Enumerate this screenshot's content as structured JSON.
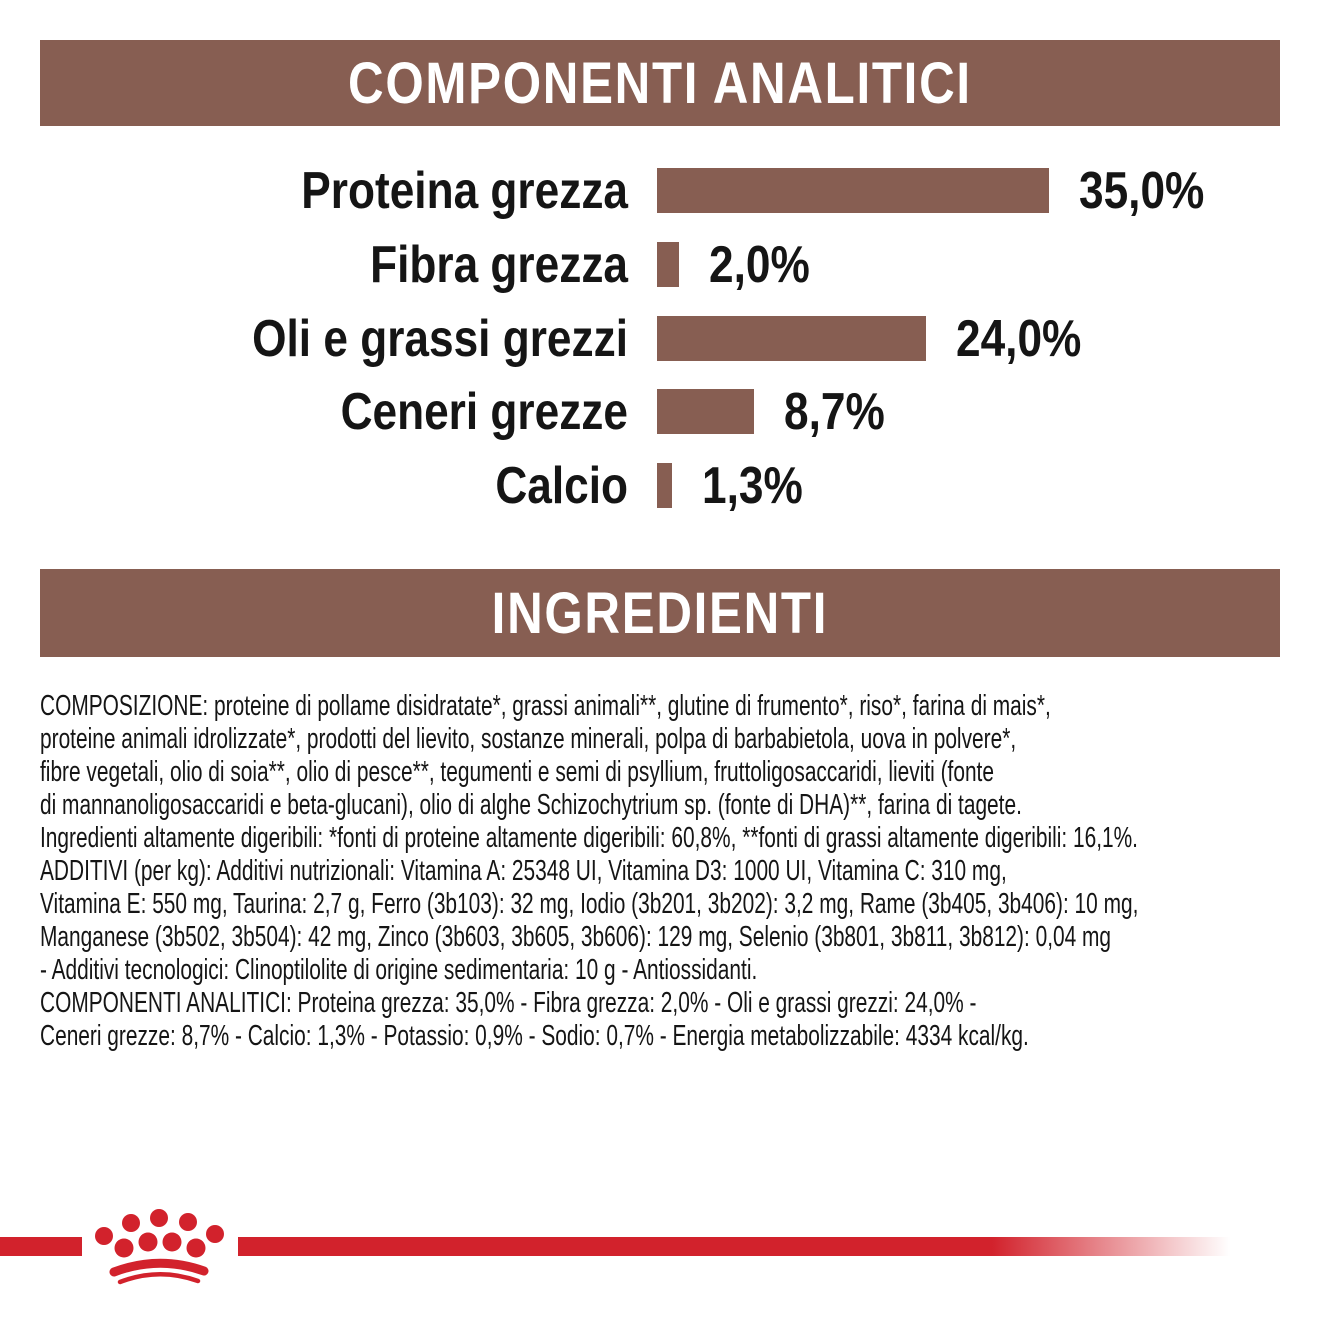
{
  "colors": {
    "brown": "#875E52",
    "red": "#D2222C",
    "text": "#151515",
    "band_text": "#FFFFFF",
    "background": "#FFFFFF"
  },
  "sections": {
    "analytical": {
      "title": "COMPONENTI ANALITICI"
    },
    "ingredients": {
      "title": "INGREDIENTI"
    }
  },
  "chart_data": {
    "type": "bar",
    "orientation": "horizontal",
    "title": "COMPONENTI ANALITICI",
    "categories": [
      "Proteina grezza",
      "Fibra grezza",
      "Oli e grassi grezzi",
      "Ceneri grezze",
      "Calcio"
    ],
    "values": [
      35.0,
      2.0,
      24.0,
      8.7,
      1.3
    ],
    "value_labels": [
      "35,0%",
      "2,0%",
      "24,0%",
      "8,7%",
      "1,3%"
    ],
    "unit": "%",
    "xlim": [
      0,
      35
    ],
    "grid": false,
    "bar_color": "#875E52",
    "value_label_position": "right-of-bar"
  },
  "ingredients_text": {
    "lines": [
      "COMPOSIZIONE: proteine di pollame disidratate*, grassi animali**, glutine di frumento*, riso*, farina di mais*,",
      "proteine animali idrolizzate*, prodotti del lievito, sostanze minerali, polpa di barbabietola, uova in polvere*,",
      "fibre vegetali, olio di soia**, olio di pesce**, tegumenti e semi di psyllium, fruttoligosaccaridi, lieviti (fonte",
      "di mannanoligosaccaridi e beta-glucani), olio di alghe Schizochytrium sp. (fonte di DHA)**, farina di tagete.",
      "Ingredienti altamente digeribili: *fonti di proteine altamente digeribili: 60,8%, **fonti di grassi altamente digeribili: 16,1%.",
      "ADDITIVI (per kg): Additivi nutrizionali: Vitamina A: 25348 UI, Vitamina D3: 1000 UI, Vitamina C: 310 mg,",
      "Vitamina E: 550 mg, Taurina: 2,7 g, Ferro (3b103): 32 mg, Iodio (3b201, 3b202): 3,2 mg, Rame (3b405, 3b406): 10 mg,",
      "Manganese (3b502, 3b504): 42 mg, Zinco (3b603, 3b605, 3b606): 129 mg, Selenio (3b801, 3b811, 3b812): 0,04 mg",
      "- Additivi tecnologici: Clinoptilolite di origine sedimentaria: 10 g - Antiossidanti.",
      "COMPONENTI ANALITICI: Proteina grezza: 35,0% - Fibra grezza: 2,0% - Oli e grassi grezzi: 24,0% -",
      "Ceneri grezze: 8,7% - Calcio: 1,3% - Potassio: 0,9% - Sodio: 0,7% - Energia metabolizzabile: 4334 kcal/kg."
    ]
  },
  "footer": {
    "logo": "royal-canin-crown"
  }
}
